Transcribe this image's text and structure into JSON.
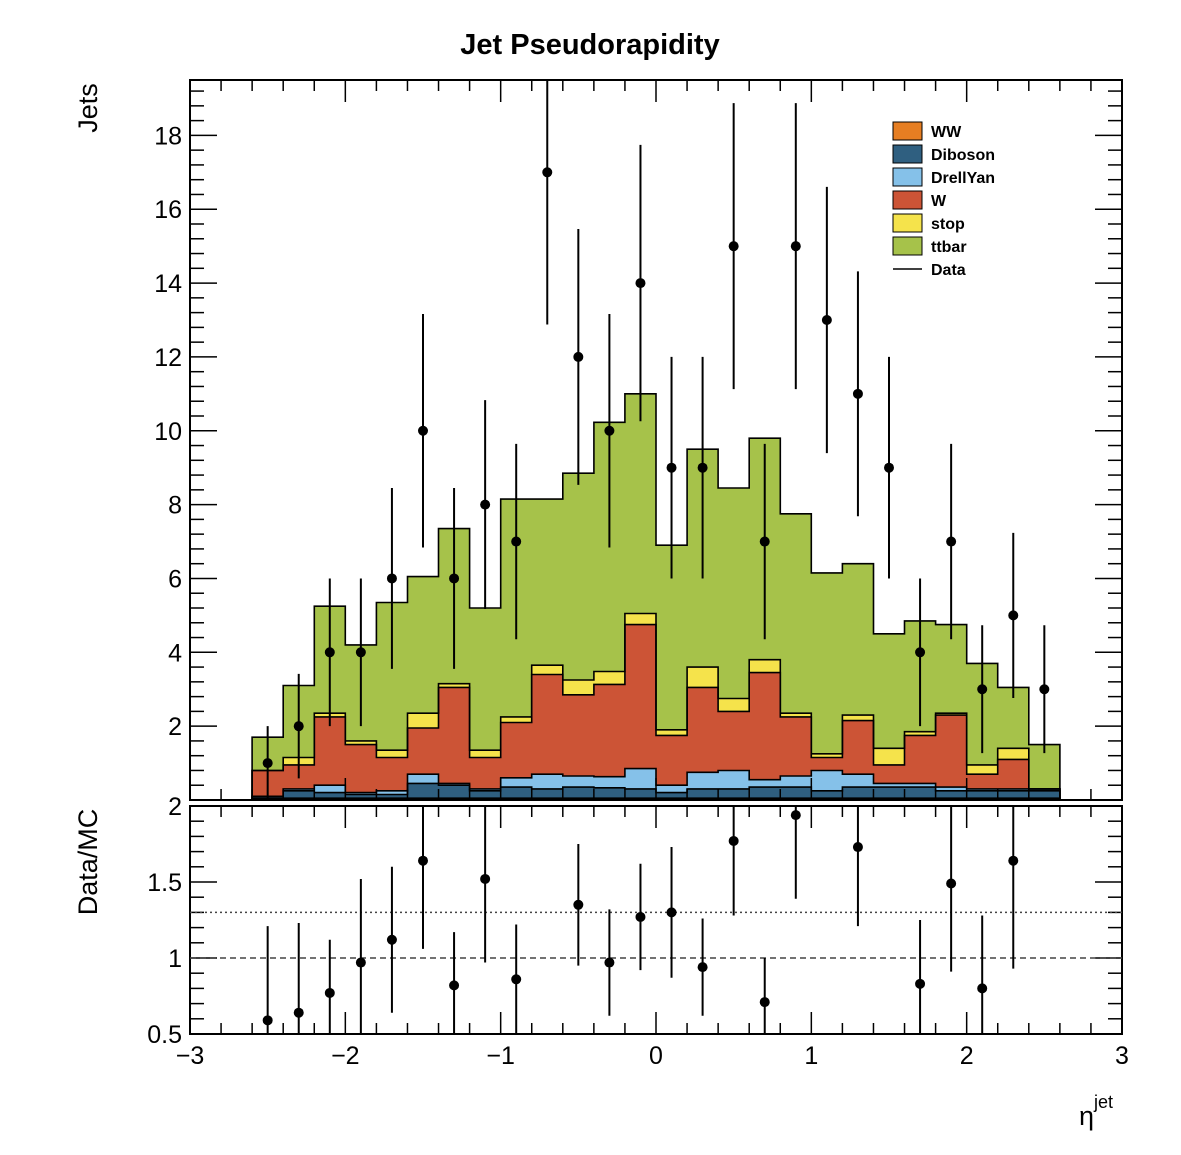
{
  "chart_data": {
    "title": "Jet Pseudorapidity",
    "type": "stacked-histogram-with-ratio",
    "bin_low_edges": [
      -3.0,
      -2.8,
      -2.6,
      -2.4,
      -2.2,
      -2.0,
      -1.8,
      -1.6,
      -1.4,
      -1.2,
      -1.0,
      -0.8,
      -0.6,
      -0.4,
      -0.2,
      0.0,
      0.2,
      0.4,
      0.6,
      0.8,
      1.0,
      1.2,
      1.4,
      1.6,
      1.8,
      2.0,
      2.2,
      2.4,
      2.6,
      2.8
    ],
    "bin_width": 0.2,
    "upper_panel": {
      "ylabel": "Jets",
      "xlim": [
        -3,
        3
      ],
      "ylim": [
        0,
        19.5
      ],
      "y_ticks": [
        "2",
        "4",
        "6",
        "8",
        "10",
        "12",
        "14",
        "16",
        "18"
      ],
      "x_ticks": [
        "−3",
        "−2",
        "−1",
        "0",
        "1",
        "2",
        "3"
      ],
      "legend_position": "top-right",
      "series": [
        {
          "name": "WW",
          "color": "#e67e22",
          "values": [
            0,
            0,
            0.05,
            0.05,
            0.05,
            0.05,
            0.05,
            0.05,
            0.05,
            0.05,
            0.05,
            0.05,
            0.05,
            0.05,
            0.05,
            0.05,
            0.05,
            0.05,
            0.05,
            0.05,
            0.05,
            0.05,
            0.05,
            0.05,
            0.05,
            0.05,
            0.05,
            0.05,
            0,
            0
          ]
        },
        {
          "name": "Diboson",
          "color": "#2f5f80",
          "values": [
            0,
            0,
            0.05,
            0.2,
            0.15,
            0.1,
            0.1,
            0.4,
            0.35,
            0.2,
            0.3,
            0.25,
            0.3,
            0.28,
            0.25,
            0.15,
            0.25,
            0.25,
            0.3,
            0.3,
            0.2,
            0.3,
            0.3,
            0.3,
            0.2,
            0.2,
            0.2,
            0.2,
            0,
            0
          ]
        },
        {
          "name": "DrellYan",
          "color": "#85c1e9",
          "values": [
            0,
            0,
            0.0,
            0.05,
            0.2,
            0.05,
            0.1,
            0.25,
            0.05,
            0.05,
            0.25,
            0.4,
            0.3,
            0.3,
            0.55,
            0.2,
            0.45,
            0.5,
            0.2,
            0.3,
            0.55,
            0.35,
            0.1,
            0.1,
            0.1,
            0.05,
            0.05,
            0.05,
            0,
            0
          ]
        },
        {
          "name": "W",
          "color": "#cc5436",
          "values": [
            0,
            0,
            0.7,
            0.65,
            1.85,
            1.3,
            0.9,
            1.25,
            2.6,
            0.85,
            1.5,
            2.7,
            2.2,
            2.5,
            3.9,
            1.35,
            2.3,
            1.6,
            2.9,
            1.6,
            0.35,
            1.45,
            0.5,
            1.3,
            1.95,
            0.4,
            0.8,
            0.0,
            0,
            0
          ]
        },
        {
          "name": "stop",
          "color": "#f5e34b",
          "values": [
            0,
            0,
            0.0,
            0.2,
            0.1,
            0.1,
            0.2,
            0.4,
            0.1,
            0.2,
            0.15,
            0.25,
            0.4,
            0.35,
            0.3,
            0.15,
            0.55,
            0.35,
            0.35,
            0.1,
            0.1,
            0.15,
            0.45,
            0.1,
            0.05,
            0.25,
            0.3,
            0.0,
            0,
            0
          ]
        },
        {
          "name": "ttbar",
          "color": "#a6c24a",
          "values": [
            0,
            0,
            0.9,
            1.95,
            2.9,
            2.6,
            4.0,
            3.7,
            4.2,
            3.85,
            5.9,
            4.5,
            5.6,
            6.75,
            5.95,
            5.0,
            5.9,
            5.7,
            6.0,
            5.4,
            4.9,
            4.1,
            3.1,
            3.0,
            2.4,
            2.75,
            1.65,
            1.2,
            0,
            0
          ]
        }
      ],
      "data": {
        "name": "Data",
        "x": [
          -2.5,
          -2.3,
          -2.1,
          -1.9,
          -1.7,
          -1.5,
          -1.3,
          -1.1,
          -0.9,
          -0.7,
          -0.5,
          -0.3,
          -0.1,
          0.1,
          0.3,
          0.5,
          0.7,
          0.9,
          1.1,
          1.3,
          1.5,
          1.7,
          1.9,
          2.1,
          2.3,
          2.5
        ],
        "y": [
          1,
          2,
          4,
          4,
          6,
          10,
          6,
          8,
          7,
          17,
          12,
          10,
          14,
          9,
          9,
          15,
          7,
          15,
          13,
          11,
          9,
          4,
          7,
          3,
          5,
          3
        ]
      }
    },
    "lower_panel": {
      "ylabel": "Data/MC",
      "xlabel": "η",
      "xlabel_superscript": "jet",
      "ylim": [
        0.5,
        2.0
      ],
      "y_ticks": [
        "0.5",
        "1",
        "1.5",
        "2"
      ],
      "reference_lines": [
        {
          "y": 1.0,
          "style": "dashed"
        },
        {
          "y": 1.3,
          "style": "dotted"
        }
      ],
      "x": [
        -2.5,
        -2.3,
        -2.1,
        -1.9,
        -1.7,
        -1.5,
        -1.3,
        -1.1,
        -0.9,
        -0.5,
        -0.3,
        -0.1,
        0.1,
        0.3,
        0.5,
        0.7,
        0.9,
        1.3,
        1.7,
        1.9,
        2.1,
        2.3
      ],
      "y": [
        0.59,
        0.64,
        0.77,
        0.97,
        1.12,
        1.64,
        0.82,
        1.52,
        0.86,
        1.35,
        0.97,
        1.27,
        1.3,
        0.94,
        1.77,
        0.71,
        1.94,
        1.73,
        0.83,
        1.49,
        0.8,
        1.64
      ],
      "err": [
        0.62,
        0.59,
        0.35,
        0.55,
        0.48,
        0.58,
        0.35,
        0.55,
        0.36,
        0.4,
        0.35,
        0.35,
        0.43,
        0.32,
        0.49,
        0.29,
        0.55,
        0.52,
        0.42,
        0.58,
        0.48,
        0.71
      ]
    }
  }
}
